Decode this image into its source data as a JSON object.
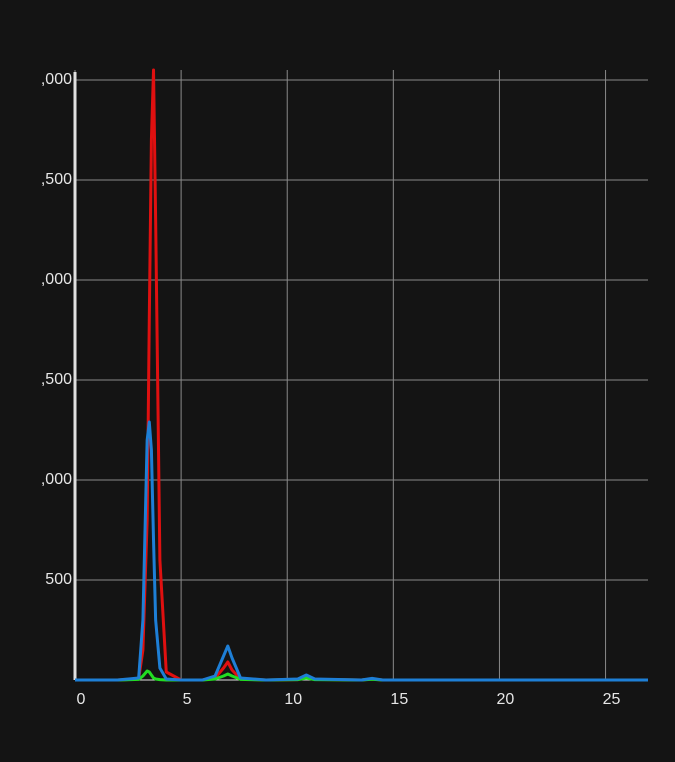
{
  "chart_data": {
    "type": "line",
    "x": [
      0,
      1,
      2,
      3,
      3.2,
      3.4,
      3.5,
      3.6,
      3.7,
      3.8,
      4,
      4.3,
      5,
      6,
      6.6,
      7,
      7.2,
      7.4,
      7.8,
      9,
      10.5,
      10.9,
      11.3,
      13.5,
      14,
      14.5,
      20,
      27
    ],
    "series": [
      {
        "color": "#e01010",
        "values": [
          0,
          0,
          0,
          5,
          150,
          800,
          1800,
          2700,
          3050,
          2300,
          600,
          40,
          0,
          0,
          10,
          60,
          90,
          50,
          5,
          0,
          2,
          15,
          3,
          0,
          5,
          0,
          0,
          0
        ]
      },
      {
        "color": "#22dd22",
        "values": [
          0,
          0,
          0,
          3,
          20,
          45,
          40,
          25,
          10,
          5,
          2,
          0,
          0,
          0,
          5,
          20,
          30,
          20,
          3,
          0,
          2,
          10,
          2,
          0,
          4,
          0,
          0,
          0
        ]
      },
      {
        "color": "#1e7fd6",
        "values": [
          0,
          0,
          0,
          10,
          300,
          1200,
          1290,
          1150,
          700,
          300,
          60,
          5,
          0,
          0,
          20,
          120,
          170,
          110,
          10,
          0,
          5,
          25,
          5,
          0,
          8,
          0,
          0,
          0
        ]
      }
    ],
    "xlim": [
      0,
      27
    ],
    "ylim": [
      0,
      3050
    ],
    "xticks": [
      0,
      5,
      10,
      15,
      20,
      25
    ],
    "yticks": [
      500,
      {
        "value": 1000,
        "label": ",000"
      },
      {
        "value": 1500,
        "label": ",500"
      },
      {
        "value": 2000,
        "label": ",000"
      },
      {
        "value": 2500,
        "label": ",500"
      },
      {
        "value": 3000,
        "label": ",000"
      }
    ],
    "grid": true
  }
}
